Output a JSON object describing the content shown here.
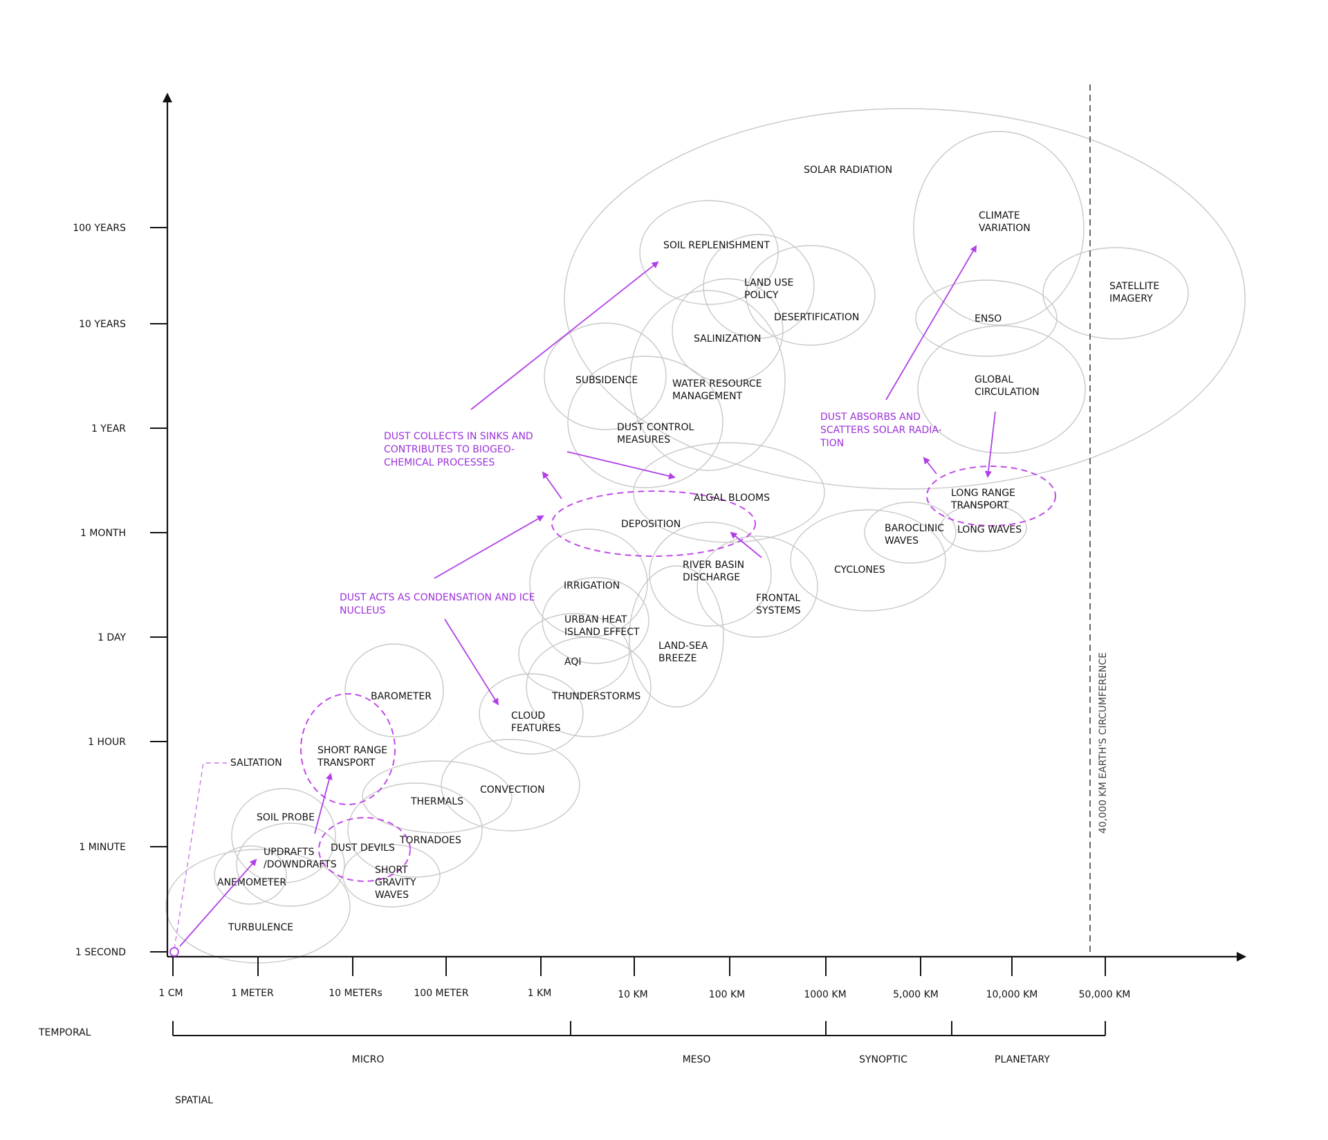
{
  "axes": {
    "y_ticks": [
      "100 YEARS",
      "10 YEARS",
      "1 YEAR",
      "1 MONTH",
      "1 DAY",
      "1 HOUR",
      "1 MINUTE",
      "1 SECOND"
    ],
    "x_ticks": [
      "1 CM",
      "1 METER",
      "10 METERs",
      "100 METER",
      "1 KM",
      "10 KM",
      "100 KM",
      "1000 KM",
      "5,000 KM",
      "10,000 KM",
      "50,000 KM"
    ],
    "temporal_label": "TEMPORAL",
    "spatial_label": "SPATIAL",
    "scales": [
      "MICRO",
      "MESO",
      "SYNOPTIC",
      "PLANETARY"
    ],
    "circumference_label": "40,000 KM EARTH'S CIRCUMFERENCE"
  },
  "phenomena": {
    "solar_radiation": [
      "SOLAR RADIATION"
    ],
    "soil_replenishment": [
      "SOIL REPLENISHMENT"
    ],
    "land_use_policy": [
      "LAND USE",
      "POLICY"
    ],
    "desertification": [
      "DESERTIFICATION"
    ],
    "salinization": [
      "SALINIZATION"
    ],
    "subsidence": [
      "SUBSIDENCE"
    ],
    "water_resource_management": [
      "WATER RESOURCE",
      "MANAGEMENT"
    ],
    "dust_control_measures": [
      "DUST CONTROL",
      "MEASURES"
    ],
    "algal_blooms": [
      "ALGAL BLOOMS"
    ],
    "deposition": [
      "DEPOSITION"
    ],
    "river_basin_discharge": [
      "RIVER BASIN",
      "DISCHARGE"
    ],
    "frontal_systems": [
      "FRONTAL",
      "SYSTEMS"
    ],
    "irrigation": [
      "IRRIGATION"
    ],
    "urban_heat_island": [
      "URBAN HEAT",
      "ISLAND EFFECT"
    ],
    "land_sea_breeze": [
      "LAND-SEA",
      "BREEZE"
    ],
    "aqi": [
      "AQI"
    ],
    "thunderstorms": [
      "THUNDERSTORMS"
    ],
    "cloud_features": [
      "CLOUD",
      "FEATURES"
    ],
    "barometer": [
      "BAROMETER"
    ],
    "short_range_transport": [
      "SHORT RANGE",
      "TRANSPORT"
    ],
    "saltation": [
      "SALTATION"
    ],
    "convection": [
      "CONVECTION"
    ],
    "thermals": [
      "THERMALS"
    ],
    "soil_probe": [
      "SOIL PROBE"
    ],
    "tornadoes": [
      "TORNADOES"
    ],
    "dust_devils": [
      "DUST DEVILS"
    ],
    "updrafts": [
      "UPDRAFTS",
      "/DOWNDRAFTS"
    ],
    "anemometer": [
      "ANEMOMETER"
    ],
    "short_gravity_waves": [
      "SHORT",
      "GRAVITY",
      "WAVES"
    ],
    "turbulence": [
      "TURBULENCE"
    ],
    "climate_variation": [
      "CLIMATE",
      "VARIATION"
    ],
    "satellite_imagery": [
      "SATELLITE",
      "IMAGERY"
    ],
    "enso": [
      "ENSO"
    ],
    "global_circulation": [
      "GLOBAL",
      "CIRCULATION"
    ],
    "long_range_transport": [
      "LONG RANGE",
      "TRANSPORT"
    ],
    "baroclinic_waves": [
      "BAROCLINIC",
      "WAVES"
    ],
    "long_waves": [
      "LONG WAVES"
    ],
    "cyclones": [
      "CYCLONES"
    ]
  },
  "annotations": {
    "dust_collects": [
      "DUST COLLECTS IN SINKS AND",
      "CONTRIBUTES TO BIOGEO-",
      "CHEMICAL PROCESSES"
    ],
    "dust_absorbs": [
      "DUST ABSORBS AND",
      "SCATTERS SOLAR RADIA-",
      "TION"
    ],
    "dust_condensation": [
      "DUST ACTS AS CONDENSATION AND ICE",
      "NUCLEUS"
    ]
  },
  "colors": {
    "highlight": "#9b30d9",
    "ellipse_stroke": "#c8c8c8",
    "axis": "#111111"
  }
}
